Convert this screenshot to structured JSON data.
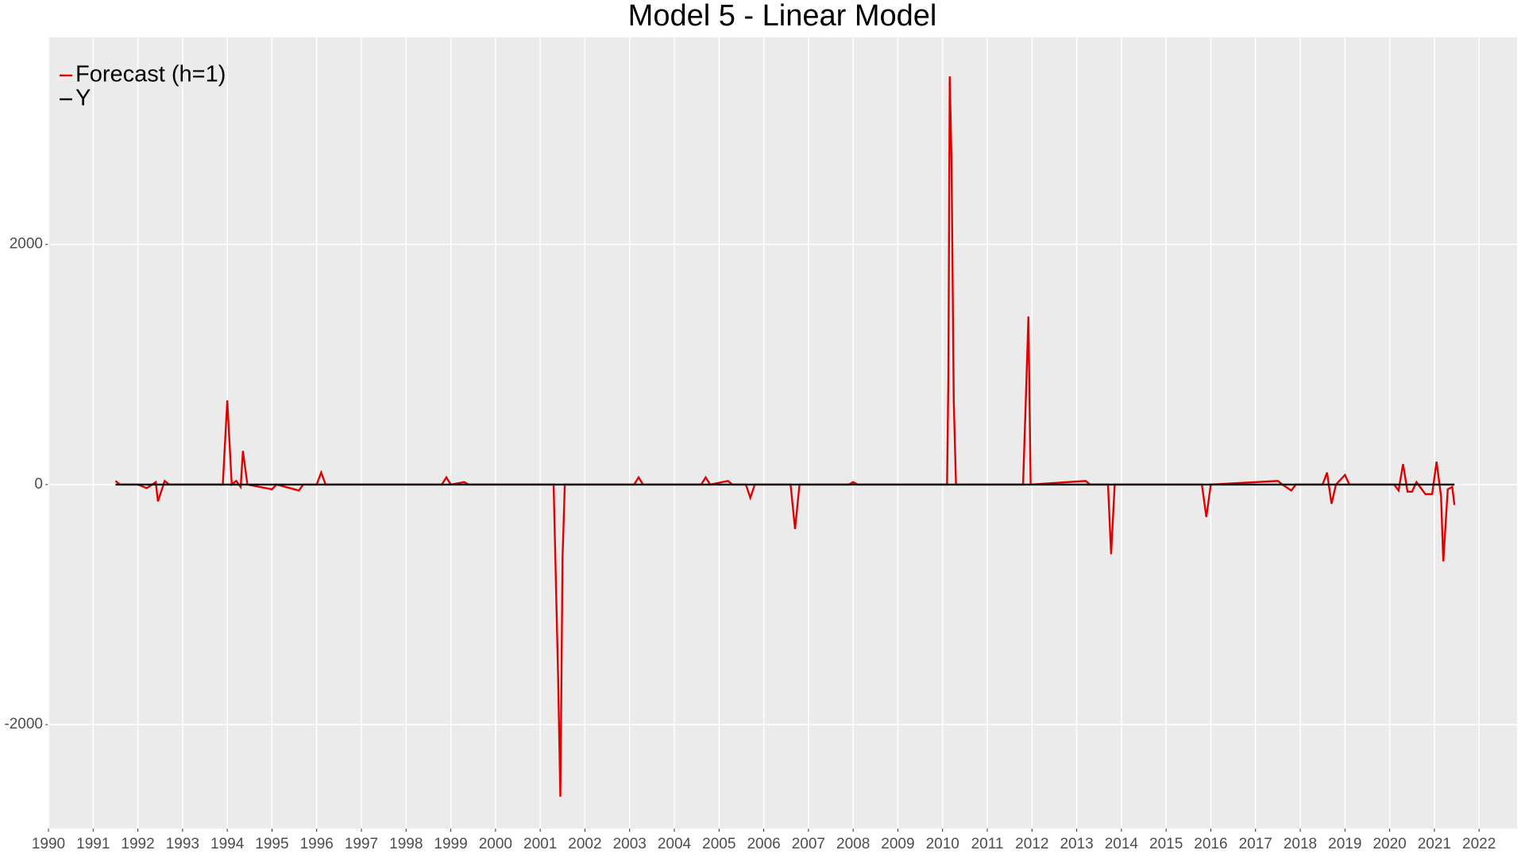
{
  "chart_data": {
    "type": "line",
    "title": "Model 5 - Linear Model",
    "series": [
      {
        "name": "Forecast (h=1)",
        "color": "#e00000",
        "x": [
          1991.5,
          1991.6,
          1992.0,
          1992.2,
          1992.4,
          1992.45,
          1992.6,
          1992.7,
          1993.5,
          1993.9,
          1994.0,
          1994.1,
          1994.2,
          1994.3,
          1994.35,
          1994.45,
          1995.0,
          1995.1,
          1995.6,
          1995.7,
          1996.0,
          1996.1,
          1996.2,
          1998.8,
          1998.9,
          1999.0,
          1999.3,
          1999.4,
          2001.3,
          2001.4,
          2001.45,
          2001.5,
          2001.55,
          2003.1,
          2003.2,
          2003.3,
          2004.6,
          2004.7,
          2004.8,
          2005.2,
          2005.3,
          2005.6,
          2005.7,
          2005.8,
          2006.6,
          2006.7,
          2006.8,
          2007.9,
          2008.0,
          2008.1,
          2010.1,
          2010.13,
          2010.16,
          2010.2,
          2010.25,
          2010.3,
          2011.8,
          2011.87,
          2011.92,
          2011.97,
          2013.2,
          2013.3,
          2013.7,
          2013.77,
          2013.85,
          2015.8,
          2015.9,
          2016.0,
          2017.5,
          2017.6,
          2017.8,
          2017.9,
          2018.5,
          2018.6,
          2018.7,
          2018.8,
          2019.0,
          2019.1,
          2020.1,
          2020.2,
          2020.3,
          2020.4,
          2020.5,
          2020.6,
          2020.8,
          2020.95,
          2021.05,
          2021.15,
          2021.2,
          2021.3,
          2021.4,
          2021.45
        ],
        "values": [
          30,
          0,
          0,
          -30,
          20,
          -140,
          30,
          0,
          0,
          0,
          700,
          0,
          30,
          -20,
          280,
          0,
          -40,
          0,
          -50,
          0,
          0,
          100,
          0,
          0,
          60,
          0,
          20,
          0,
          0,
          -1600,
          -2600,
          -600,
          0,
          0,
          60,
          0,
          0,
          60,
          0,
          30,
          0,
          0,
          -110,
          0,
          0,
          -370,
          0,
          0,
          20,
          0,
          0,
          900,
          3400,
          2700,
          700,
          0,
          0,
          800,
          1400,
          0,
          30,
          0,
          0,
          -580,
          0,
          0,
          -270,
          0,
          30,
          0,
          -50,
          0,
          0,
          100,
          -160,
          0,
          80,
          0,
          0,
          -50,
          170,
          -60,
          -60,
          20,
          -80,
          -80,
          190,
          -100,
          -640,
          -40,
          -20,
          -170
        ]
      },
      {
        "name": "Y",
        "color": "#000000",
        "x": [
          1991.5,
          2021.45
        ],
        "values": [
          0,
          0
        ]
      }
    ],
    "xlim": [
      1990,
      2022.85
    ],
    "xticks": [
      1990,
      1991,
      1992,
      1993,
      1994,
      1995,
      1996,
      1997,
      1998,
      1999,
      2000,
      2001,
      2002,
      2003,
      2004,
      2005,
      2006,
      2007,
      2008,
      2009,
      2010,
      2011,
      2012,
      2013,
      2014,
      2015,
      2016,
      2017,
      2018,
      2019,
      2020,
      2021,
      2022
    ],
    "ylim": [
      -2866,
      3725
    ],
    "yticks": [
      -2000,
      0,
      2000
    ],
    "grid": true,
    "legend": "top-left"
  }
}
